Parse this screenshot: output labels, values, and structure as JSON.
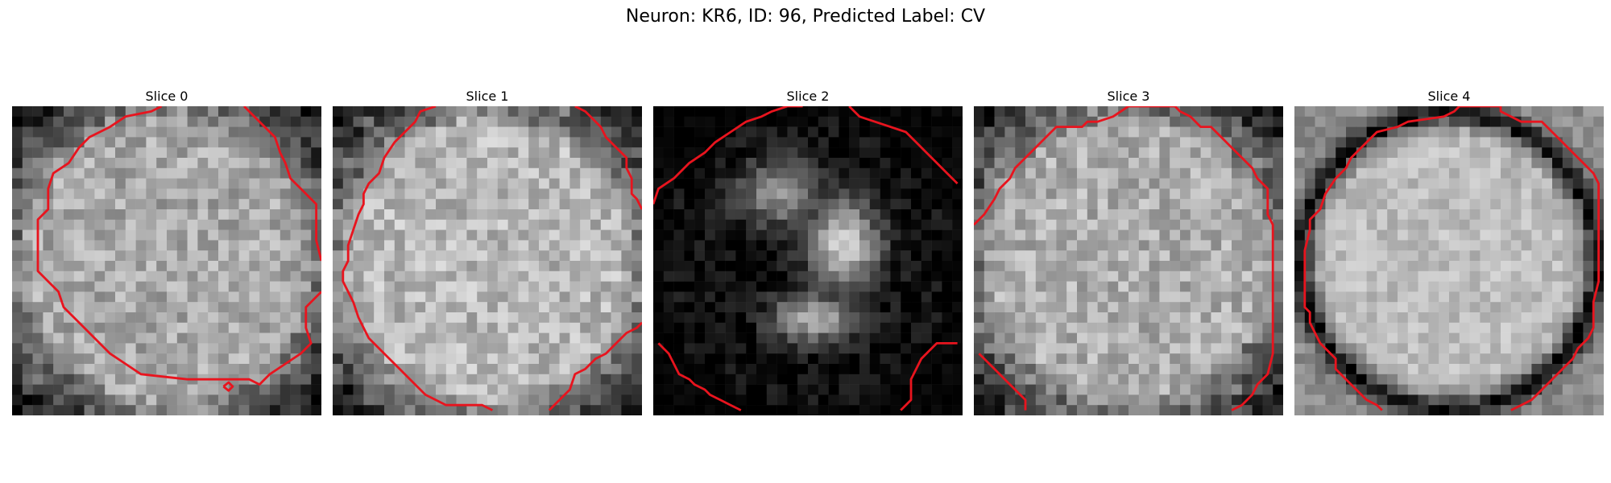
{
  "figure": {
    "title": "Neuron: KR6, ID: 96, Predicted Label: CV"
  },
  "panels": [
    {
      "title": "Slice 0",
      "image": {
        "style": "bright-disc",
        "brightness": 0.66,
        "seed": 11
      },
      "contours": [
        [
          [
            14.5,
            0
          ],
          [
            13.5,
            0.5
          ],
          [
            11,
            1
          ],
          [
            9.5,
            2
          ],
          [
            7.5,
            3
          ],
          [
            6.5,
            4
          ],
          [
            5.5,
            5.5
          ],
          [
            4,
            6.5
          ],
          [
            3.5,
            8
          ],
          [
            3.5,
            10
          ],
          [
            2.5,
            11
          ],
          [
            2.5,
            13
          ],
          [
            2.5,
            16
          ],
          [
            3.5,
            17
          ],
          [
            4.5,
            18
          ],
          [
            5,
            19.5
          ],
          [
            6.5,
            21
          ],
          [
            8,
            22.5
          ],
          [
            9.5,
            24
          ],
          [
            11,
            25
          ],
          [
            12.5,
            26
          ],
          [
            17,
            26.5
          ],
          [
            22,
            26.5
          ],
          [
            23,
            26.5
          ],
          [
            24,
            27
          ],
          [
            25,
            26
          ],
          [
            26.5,
            25
          ],
          [
            28,
            24
          ],
          [
            29,
            23
          ],
          [
            28.5,
            21.5
          ],
          [
            28.5,
            19.5
          ],
          [
            29.5,
            18.5
          ],
          [
            30,
            18
          ]
        ],
        [
          [
            22.5,
            0
          ],
          [
            24,
            1.5
          ],
          [
            25.5,
            3
          ],
          [
            26,
            4.5
          ],
          [
            26.5,
            5.5
          ],
          [
            27,
            7
          ],
          [
            28.5,
            8.5
          ],
          [
            29.5,
            9.5
          ],
          [
            29.5,
            11
          ],
          [
            29.5,
            13
          ],
          [
            30,
            15
          ]
        ],
        [
          [
            20.5,
            27.2
          ],
          [
            21,
            26.8
          ],
          [
            21.4,
            27.2
          ],
          [
            21,
            27.6
          ],
          [
            20.5,
            27.2
          ]
        ]
      ]
    },
    {
      "title": "Slice 1",
      "image": {
        "style": "bright-disc",
        "brightness": 0.72,
        "seed": 23
      },
      "contours": [
        [
          [
            10,
            0
          ],
          [
            8.5,
            0.5
          ],
          [
            8,
            1.5
          ],
          [
            7,
            2.5
          ],
          [
            6,
            3.5
          ],
          [
            5,
            5
          ],
          [
            4.5,
            6.5
          ],
          [
            3.5,
            7.5
          ],
          [
            3,
            8.5
          ],
          [
            3,
            9.5
          ],
          [
            2.5,
            10.5
          ],
          [
            2,
            12
          ],
          [
            1.5,
            13.5
          ],
          [
            1.5,
            15
          ],
          [
            1,
            16
          ],
          [
            1,
            17
          ],
          [
            1.5,
            18
          ],
          [
            2,
            19
          ],
          [
            2.5,
            20.5
          ],
          [
            3,
            21.5
          ],
          [
            3.5,
            22.5
          ],
          [
            5,
            24
          ],
          [
            6.5,
            25.5
          ],
          [
            8,
            27
          ],
          [
            9,
            28
          ],
          [
            11,
            29
          ],
          [
            12.5,
            29
          ],
          [
            14.5,
            29
          ],
          [
            15.5,
            29.5
          ]
        ],
        [
          [
            23.5,
            0
          ],
          [
            24.5,
            0.5
          ],
          [
            25,
            1
          ],
          [
            26,
            2
          ],
          [
            26.5,
            3
          ],
          [
            27.5,
            4
          ],
          [
            28.5,
            5
          ],
          [
            28.5,
            6
          ],
          [
            29,
            7
          ],
          [
            29,
            8.5
          ],
          [
            29.5,
            9
          ],
          [
            30,
            10
          ]
        ],
        [
          [
            21,
            29.5
          ],
          [
            22,
            28.5
          ],
          [
            23,
            27.5
          ],
          [
            23.5,
            26
          ],
          [
            24.5,
            25.5
          ],
          [
            25.5,
            24.5
          ],
          [
            26.5,
            24
          ],
          [
            27.5,
            23
          ],
          [
            28.5,
            22
          ],
          [
            29.5,
            21.5
          ],
          [
            30,
            21
          ]
        ]
      ]
    },
    {
      "title": "Slice 2",
      "image": {
        "style": "dark-blobs",
        "brightness": 0.45,
        "seed": 37
      },
      "contours": [
        [
          [
            0,
            9.5
          ],
          [
            0.5,
            8
          ],
          [
            2,
            7
          ],
          [
            3.5,
            5.5
          ],
          [
            5,
            4.5
          ],
          [
            6,
            3.5
          ],
          [
            7.5,
            2.5
          ],
          [
            9,
            1.5
          ],
          [
            10.5,
            1
          ],
          [
            11.5,
            0.5
          ],
          [
            13,
            0
          ],
          [
            14.5,
            0
          ]
        ],
        [
          [
            19,
            0
          ],
          [
            20,
            1
          ],
          [
            21.5,
            1.5
          ],
          [
            23,
            2
          ],
          [
            24.5,
            2.5
          ],
          [
            25.5,
            3.5
          ],
          [
            26.5,
            4.5
          ],
          [
            27.5,
            5.5
          ],
          [
            28.5,
            6.5
          ],
          [
            29.5,
            7.5
          ]
        ],
        [
          [
            0.5,
            23
          ],
          [
            1.5,
            24
          ],
          [
            2,
            25
          ],
          [
            2.5,
            26
          ],
          [
            3.5,
            26.5
          ],
          [
            4,
            27
          ],
          [
            5,
            27.5
          ],
          [
            5.5,
            28
          ],
          [
            6.5,
            28.5
          ],
          [
            7.5,
            29
          ],
          [
            8.5,
            29.5
          ]
        ],
        [
          [
            24,
            29.5
          ],
          [
            24.5,
            29
          ],
          [
            25,
            28.5
          ],
          [
            25,
            27.5
          ],
          [
            25,
            26.5
          ],
          [
            25.5,
            25.5
          ],
          [
            26,
            24.5
          ],
          [
            27,
            23.5
          ],
          [
            27.5,
            23
          ],
          [
            28.5,
            23
          ],
          [
            29.5,
            23
          ]
        ]
      ]
    },
    {
      "title": "Slice 3",
      "image": {
        "style": "bright-disc",
        "brightness": 0.68,
        "seed": 53
      },
      "contours": [
        [
          [
            0,
            11.5
          ],
          [
            1,
            10.5
          ],
          [
            2,
            9
          ],
          [
            2.5,
            8
          ],
          [
            3.5,
            7
          ],
          [
            4,
            6
          ],
          [
            5,
            5
          ],
          [
            6,
            4
          ],
          [
            7,
            3
          ],
          [
            8,
            2
          ],
          [
            10.5,
            2
          ],
          [
            11,
            1.5
          ],
          [
            12,
            1.5
          ],
          [
            13.5,
            1
          ],
          [
            15,
            0
          ],
          [
            19.5,
            0
          ],
          [
            20,
            0.5
          ],
          [
            21,
            1
          ],
          [
            22,
            2
          ],
          [
            23,
            2
          ],
          [
            24,
            3
          ],
          [
            25,
            4
          ],
          [
            26,
            5
          ],
          [
            27,
            6
          ],
          [
            27.5,
            7
          ],
          [
            28.5,
            8
          ],
          [
            28.5,
            10.5
          ],
          [
            29,
            11.5
          ],
          [
            29,
            12.5
          ],
          [
            29,
            14
          ],
          [
            29,
            16
          ],
          [
            29,
            18
          ],
          [
            29,
            20
          ],
          [
            29,
            22
          ],
          [
            29,
            24
          ],
          [
            28.5,
            26
          ],
          [
            27.5,
            27
          ],
          [
            27,
            28
          ],
          [
            26,
            29
          ],
          [
            25,
            29.5
          ]
        ],
        [
          [
            0.5,
            24
          ],
          [
            1,
            24.5
          ],
          [
            2,
            25.5
          ],
          [
            3,
            26.5
          ],
          [
            4,
            27.5
          ],
          [
            5,
            28.5
          ],
          [
            5,
            29.5
          ]
        ]
      ]
    },
    {
      "title": "Slice 4",
      "image": {
        "style": "ring-disc",
        "brightness": 0.74,
        "seed": 71
      },
      "contours": [
        [
          [
            8.5,
            29.5
          ],
          [
            8,
            29
          ],
          [
            7,
            28.5
          ],
          [
            6,
            27.5
          ],
          [
            5,
            26.5
          ],
          [
            4,
            25.5
          ],
          [
            4,
            24.5
          ],
          [
            3.5,
            24
          ],
          [
            2.5,
            23
          ],
          [
            2,
            22
          ],
          [
            1.5,
            21
          ],
          [
            1.5,
            20
          ],
          [
            1,
            19.5
          ],
          [
            1,
            18
          ],
          [
            1,
            16
          ],
          [
            1,
            14
          ],
          [
            1.5,
            12
          ],
          [
            1.5,
            11
          ],
          [
            2.5,
            10
          ],
          [
            3,
            8.5
          ],
          [
            4,
            7
          ],
          [
            5,
            6
          ],
          [
            5.5,
            5
          ],
          [
            7,
            3.5
          ],
          [
            8,
            2.5
          ],
          [
            10,
            2
          ],
          [
            11,
            1.5
          ],
          [
            14.5,
            1
          ],
          [
            15.5,
            0.5
          ],
          [
            16,
            0
          ],
          [
            20,
            0
          ],
          [
            20,
            0.5
          ],
          [
            21,
            1
          ],
          [
            22,
            1.5
          ],
          [
            24,
            1.5
          ],
          [
            25,
            2.5
          ],
          [
            26,
            3.5
          ],
          [
            27,
            4.5
          ],
          [
            28,
            5.5
          ],
          [
            29,
            6.5
          ],
          [
            29.5,
            7.5
          ],
          [
            29.5,
            9
          ],
          [
            29.5,
            11
          ],
          [
            29.5,
            13
          ],
          [
            29.5,
            15
          ],
          [
            29.5,
            17
          ],
          [
            29,
            19
          ],
          [
            29,
            21.5
          ],
          [
            28.5,
            22.5
          ],
          [
            27.5,
            23.5
          ],
          [
            27,
            24.5
          ],
          [
            26,
            25.5
          ],
          [
            25,
            26.5
          ],
          [
            24,
            27.5
          ],
          [
            23,
            28.5
          ],
          [
            22,
            29
          ],
          [
            21,
            29.5
          ]
        ]
      ]
    }
  ]
}
